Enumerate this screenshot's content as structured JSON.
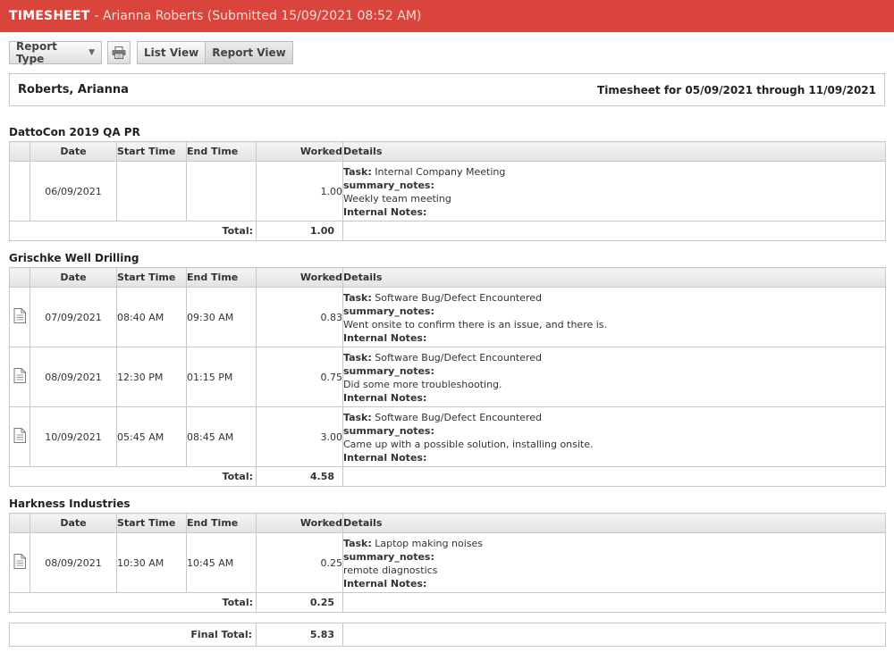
{
  "title": {
    "main": "TIMESHEET",
    "sub": "- Arianna Roberts (Submitted 15/09/2021 08:52 AM)"
  },
  "toolbar": {
    "report_type_label": "Report Type",
    "list_view_label": "List View",
    "report_view_label": "Report View"
  },
  "header": {
    "name": "Roberts, Arianna",
    "period": "Timesheet for 05/09/2021 through 11/09/2021"
  },
  "columns": {
    "date": "Date",
    "start": "Start Time",
    "end": "End Time",
    "worked": "Worked",
    "details": "Details"
  },
  "labels": {
    "task": "Task:",
    "summary_notes": "summary_notes:",
    "internal_notes": "Internal Notes:",
    "total": "Total:",
    "final_total": "Final Total:"
  },
  "sections": [
    {
      "name": "DattoCon 2019 QA PR",
      "entries": [
        {
          "has_icon": false,
          "date": "06/09/2021",
          "start": "",
          "end": "",
          "worked": "1.00",
          "task": "Internal Company Meeting",
          "summary": "Weekly team meeting"
        }
      ],
      "total": "1.00"
    },
    {
      "name": "Grischke Well Drilling",
      "entries": [
        {
          "has_icon": true,
          "date": "07/09/2021",
          "start": "08:40 AM",
          "end": "09:30 AM",
          "worked": "0.83",
          "task": "Software Bug/Defect Encountered",
          "summary": "Went onsite to confirm there is an issue, and there is."
        },
        {
          "has_icon": true,
          "date": "08/09/2021",
          "start": "12:30 PM",
          "end": "01:15 PM",
          "worked": "0.75",
          "task": "Software Bug/Defect Encountered",
          "summary": "Did some more troubleshooting."
        },
        {
          "has_icon": true,
          "date": "10/09/2021",
          "start": "05:45 AM",
          "end": "08:45 AM",
          "worked": "3.00",
          "task": "Software Bug/Defect Encountered",
          "summary": "Came up with a possible solution, installing onsite."
        }
      ],
      "total": "4.58"
    },
    {
      "name": "Harkness Industries",
      "entries": [
        {
          "has_icon": true,
          "date": "08/09/2021",
          "start": "10:30 AM",
          "end": "10:45 AM",
          "worked": "0.25",
          "task": "Laptop making noises",
          "summary": "remote diagnostics"
        }
      ],
      "total": "0.25"
    }
  ],
  "final_total": "5.83",
  "icons": {
    "dropdown": "chevron-down-icon",
    "print": "printer-icon",
    "entry": "document-icon"
  }
}
